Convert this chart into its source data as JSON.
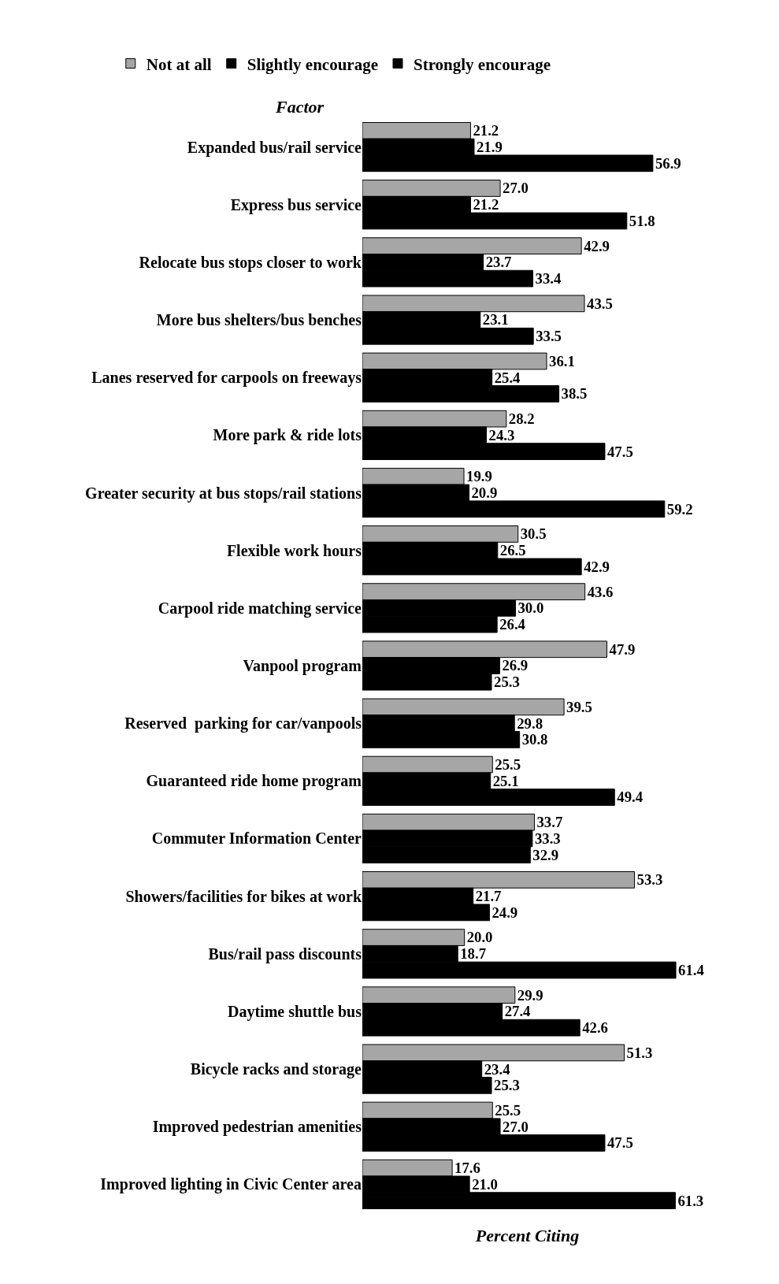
{
  "chart_data": {
    "type": "bar",
    "orientation": "horizontal",
    "ylabel": "Factor",
    "xlabel": "Percent Citing",
    "categories": [
      "Expanded bus/rail service",
      "Express bus service",
      "Relocate bus stops closer to work",
      "More bus shelters/bus benches",
      "Lanes reserved for carpools on freeways",
      "More park & ride lots",
      "Greater security at bus stops/rail stations",
      "Flexible work hours",
      "Carpool ride matching service",
      "Vanpool program",
      "Reserved  parking for car/vanpools",
      "Guaranteed ride home program",
      "Commuter Information Center",
      "Showers/facilities for bikes at work",
      "Bus/rail pass discounts",
      "Daytime shuttle bus",
      "Bicycle racks and storage",
      "Improved pedestrian amenities",
      "Improved lighting in Civic Center area"
    ],
    "series": [
      {
        "name": "Not at all",
        "color": "#a6a6a6",
        "values": [
          21.2,
          27.0,
          42.9,
          43.5,
          36.1,
          28.2,
          19.9,
          30.5,
          43.6,
          47.9,
          39.5,
          25.5,
          33.7,
          53.3,
          20.0,
          29.9,
          51.3,
          25.5,
          17.6
        ],
        "value_labels": [
          "21.2",
          "27.0",
          "42.9",
          "43.5",
          "36.1",
          "28.2",
          "19.9",
          "30.5",
          "43.6",
          "47.9",
          "39.5",
          "25.5",
          "33.7",
          "53.3",
          "20.0",
          "29.9",
          "51.3",
          "25.5",
          "17.6"
        ]
      },
      {
        "name": "Slightly encourage",
        "color": "#000000",
        "values": [
          21.9,
          21.2,
          23.7,
          23.1,
          25.4,
          24.3,
          20.9,
          26.5,
          30.0,
          26.9,
          29.8,
          25.1,
          33.3,
          21.7,
          18.7,
          27.4,
          23.4,
          27.0,
          21.0
        ],
        "value_labels": [
          "21.9",
          "21.2",
          "23.7",
          "23.1",
          "25.4",
          "24.3",
          "20.9",
          "26.5",
          "30.0",
          "26.9",
          "29.8",
          "25.1",
          "33.3",
          "21.7",
          "18.7",
          "27.4",
          "23.4",
          "27.0",
          "21.0"
        ]
      },
      {
        "name": "Strongly encourage",
        "color": "#000000",
        "values": [
          56.9,
          51.8,
          33.4,
          33.5,
          38.5,
          47.5,
          59.2,
          42.9,
          26.4,
          25.3,
          30.8,
          49.4,
          32.9,
          24.9,
          61.4,
          42.6,
          25.3,
          47.5,
          61.3
        ],
        "value_labels": [
          "56.9",
          "51.8",
          "33.4",
          "33.5",
          "38.5",
          "47.5",
          "59.2",
          "42.9",
          "26.4",
          "25.3",
          "30.8",
          "49.4",
          "32.9",
          "24.9",
          "61.4",
          "42.6",
          "25.3",
          "47.5",
          "61.3"
        ]
      }
    ],
    "tick_labels": "y",
    "grid": false,
    "legend": "top"
  }
}
